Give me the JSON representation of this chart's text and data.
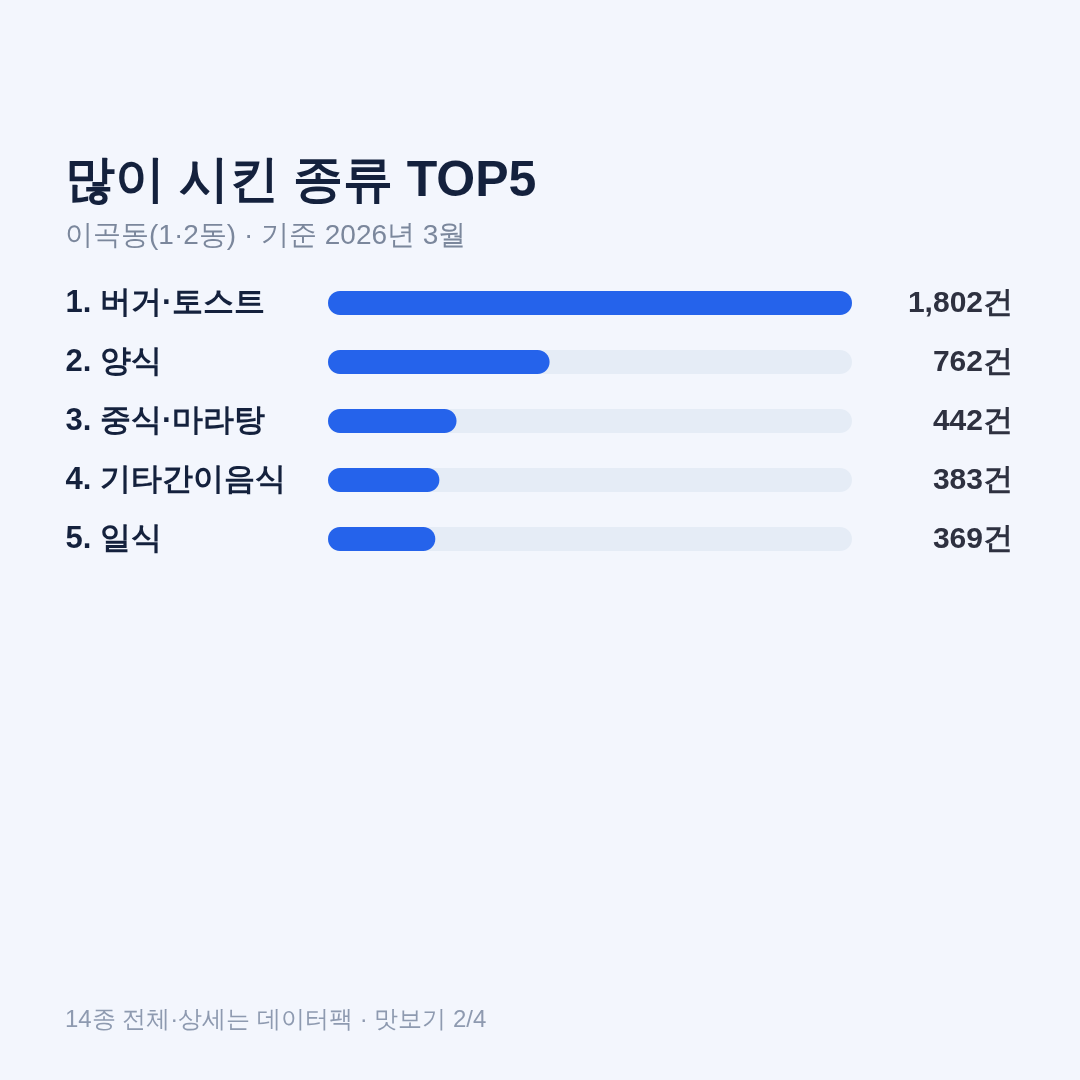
{
  "chart_data": {
    "type": "bar",
    "orientation": "horizontal",
    "title": "많이 시킨 종류 TOP5",
    "subtitle": "이곡동(1·2동) · 기준 2026년 3월",
    "categories": [
      "1. 버거·토스트",
      "2. 양식",
      "3. 중식·마라탕",
      "4. 기타간이음식",
      "5. 일식"
    ],
    "values": [
      1802,
      762,
      442,
      383,
      369
    ],
    "value_labels": [
      "1,802건",
      "762건",
      "442건",
      "383건",
      "369건"
    ],
    "color": "#2563eb",
    "xlim": [
      0,
      1802
    ],
    "tick_labels": "y",
    "annotations": [
      "14종 전체·상세는 데이터팩 · 맛보기 2/4"
    ]
  }
}
